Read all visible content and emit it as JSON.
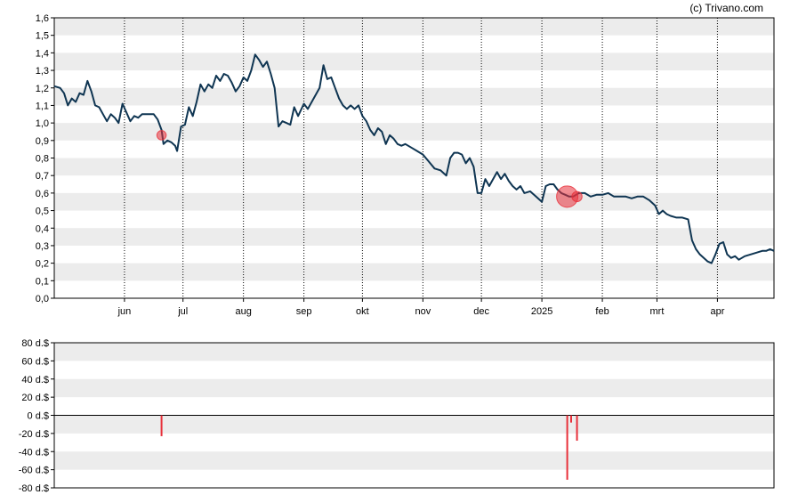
{
  "credit": "(c) Trivano.com",
  "colors": {
    "price_line": "#0f3552",
    "band": "#ececec",
    "transaction_fill": "#e8303a",
    "insider_bar": "#e8303a",
    "axis": "#000000",
    "month_grid": "#000000"
  },
  "chart_data": [
    {
      "type": "line",
      "title": "",
      "xlabel": "",
      "ylabel": "",
      "ylim": [
        0,
        1.6
      ],
      "y_ticks": [
        "0,0",
        "0,1",
        "0,2",
        "0,3",
        "0,4",
        "0,5",
        "0,6",
        "0,7",
        "0,8",
        "0,9",
        "1,0",
        "1,1",
        "1,2",
        "1,3",
        "1,4",
        "1,5",
        "1,6"
      ],
      "x_range": [
        "2024-04-26",
        "2025-04-30"
      ],
      "x_ticks": [
        {
          "label": "jun",
          "date": "2024-06-01"
        },
        {
          "label": "jul",
          "date": "2024-07-01"
        },
        {
          "label": "aug",
          "date": "2024-08-01"
        },
        {
          "label": "sep",
          "date": "2024-09-01"
        },
        {
          "label": "okt",
          "date": "2024-10-01"
        },
        {
          "label": "nov",
          "date": "2024-11-01"
        },
        {
          "label": "dec",
          "date": "2024-12-01"
        },
        {
          "label": "2025",
          "date": "2025-01-01"
        },
        {
          "label": "feb",
          "date": "2025-02-01"
        },
        {
          "label": "mrt",
          "date": "2025-03-01"
        },
        {
          "label": "apr",
          "date": "2025-04-01"
        }
      ],
      "grid": "alternating horizontal bands, dotted vertical month lines",
      "series": [
        {
          "points": [
            [
              "2024-04-26",
              1.21
            ],
            [
              "2024-04-29",
              1.2
            ],
            [
              "2024-05-01",
              1.17
            ],
            [
              "2024-05-03",
              1.1
            ],
            [
              "2024-05-05",
              1.14
            ],
            [
              "2024-05-07",
              1.12
            ],
            [
              "2024-05-09",
              1.17
            ],
            [
              "2024-05-11",
              1.16
            ],
            [
              "2024-05-13",
              1.24
            ],
            [
              "2024-05-15",
              1.18
            ],
            [
              "2024-05-17",
              1.1
            ],
            [
              "2024-05-19",
              1.09
            ],
            [
              "2024-05-21",
              1.05
            ],
            [
              "2024-05-23",
              1.01
            ],
            [
              "2024-05-25",
              1.05
            ],
            [
              "2024-05-27",
              1.03
            ],
            [
              "2024-05-29",
              1.0
            ],
            [
              "2024-05-31",
              1.11
            ],
            [
              "2024-06-02",
              1.06
            ],
            [
              "2024-06-04",
              1.01
            ],
            [
              "2024-06-06",
              1.04
            ],
            [
              "2024-06-08",
              1.03
            ],
            [
              "2024-06-10",
              1.05
            ],
            [
              "2024-06-13",
              1.05
            ],
            [
              "2024-06-16",
              1.05
            ],
            [
              "2024-06-18",
              1.02
            ],
            [
              "2024-06-20",
              0.96
            ],
            [
              "2024-06-21",
              0.88
            ],
            [
              "2024-06-23",
              0.9
            ],
            [
              "2024-06-25",
              0.89
            ],
            [
              "2024-06-27",
              0.87
            ],
            [
              "2024-06-28",
              0.84
            ],
            [
              "2024-06-30",
              0.98
            ],
            [
              "2024-07-02",
              0.99
            ],
            [
              "2024-07-04",
              1.09
            ],
            [
              "2024-07-06",
              1.04
            ],
            [
              "2024-07-08",
              1.12
            ],
            [
              "2024-07-10",
              1.22
            ],
            [
              "2024-07-12",
              1.18
            ],
            [
              "2024-07-14",
              1.22
            ],
            [
              "2024-07-16",
              1.2
            ],
            [
              "2024-07-18",
              1.27
            ],
            [
              "2024-07-20",
              1.24
            ],
            [
              "2024-07-22",
              1.28
            ],
            [
              "2024-07-24",
              1.27
            ],
            [
              "2024-07-26",
              1.23
            ],
            [
              "2024-07-28",
              1.18
            ],
            [
              "2024-07-30",
              1.21
            ],
            [
              "2024-08-01",
              1.26
            ],
            [
              "2024-08-03",
              1.24
            ],
            [
              "2024-08-05",
              1.3
            ],
            [
              "2024-08-07",
              1.39
            ],
            [
              "2024-08-09",
              1.36
            ],
            [
              "2024-08-11",
              1.32
            ],
            [
              "2024-08-13",
              1.35
            ],
            [
              "2024-08-15",
              1.28
            ],
            [
              "2024-08-17",
              1.2
            ],
            [
              "2024-08-19",
              0.98
            ],
            [
              "2024-08-21",
              1.01
            ],
            [
              "2024-08-23",
              1.0
            ],
            [
              "2024-08-25",
              0.99
            ],
            [
              "2024-08-27",
              1.09
            ],
            [
              "2024-08-29",
              1.04
            ],
            [
              "2024-09-01",
              1.11
            ],
            [
              "2024-09-03",
              1.08
            ],
            [
              "2024-09-05",
              1.12
            ],
            [
              "2024-09-07",
              1.16
            ],
            [
              "2024-09-09",
              1.2
            ],
            [
              "2024-09-11",
              1.33
            ],
            [
              "2024-09-13",
              1.25
            ],
            [
              "2024-09-15",
              1.26
            ],
            [
              "2024-09-17",
              1.2
            ],
            [
              "2024-09-19",
              1.14
            ],
            [
              "2024-09-21",
              1.1
            ],
            [
              "2024-09-23",
              1.08
            ],
            [
              "2024-09-25",
              1.1
            ],
            [
              "2024-09-27",
              1.08
            ],
            [
              "2024-09-29",
              1.1
            ],
            [
              "2024-10-01",
              1.04
            ],
            [
              "2024-10-03",
              1.01
            ],
            [
              "2024-10-05",
              0.96
            ],
            [
              "2024-10-07",
              0.93
            ],
            [
              "2024-10-09",
              0.97
            ],
            [
              "2024-10-11",
              0.95
            ],
            [
              "2024-10-13",
              0.88
            ],
            [
              "2024-10-15",
              0.93
            ],
            [
              "2024-10-17",
              0.91
            ],
            [
              "2024-10-19",
              0.88
            ],
            [
              "2024-10-21",
              0.87
            ],
            [
              "2024-10-23",
              0.88
            ],
            [
              "2024-10-26",
              0.86
            ],
            [
              "2024-10-29",
              0.84
            ],
            [
              "2024-11-01",
              0.82
            ],
            [
              "2024-11-04",
              0.78
            ],
            [
              "2024-11-07",
              0.74
            ],
            [
              "2024-11-10",
              0.73
            ],
            [
              "2024-11-13",
              0.7
            ],
            [
              "2024-11-15",
              0.8
            ],
            [
              "2024-11-17",
              0.83
            ],
            [
              "2024-11-19",
              0.83
            ],
            [
              "2024-11-21",
              0.82
            ],
            [
              "2024-11-23",
              0.77
            ],
            [
              "2024-11-25",
              0.8
            ],
            [
              "2024-11-27",
              0.75
            ],
            [
              "2024-11-29",
              0.6
            ],
            [
              "2024-12-01",
              0.6
            ],
            [
              "2024-12-03",
              0.68
            ],
            [
              "2024-12-05",
              0.64
            ],
            [
              "2024-12-07",
              0.68
            ],
            [
              "2024-12-09",
              0.72
            ],
            [
              "2024-12-11",
              0.68
            ],
            [
              "2024-12-13",
              0.71
            ],
            [
              "2024-12-15",
              0.67
            ],
            [
              "2024-12-17",
              0.64
            ],
            [
              "2024-12-19",
              0.62
            ],
            [
              "2024-12-21",
              0.64
            ],
            [
              "2024-12-23",
              0.6
            ],
            [
              "2024-12-26",
              0.61
            ],
            [
              "2024-12-29",
              0.58
            ],
            [
              "2025-01-01",
              0.55
            ],
            [
              "2025-01-03",
              0.64
            ],
            [
              "2025-01-05",
              0.65
            ],
            [
              "2025-01-07",
              0.65
            ],
            [
              "2025-01-09",
              0.62
            ],
            [
              "2025-01-11",
              0.6
            ],
            [
              "2025-01-13",
              0.59
            ],
            [
              "2025-01-15",
              0.58
            ],
            [
              "2025-01-17",
              0.58
            ],
            [
              "2025-01-20",
              0.6
            ],
            [
              "2025-01-23",
              0.6
            ],
            [
              "2025-01-26",
              0.58
            ],
            [
              "2025-01-29",
              0.59
            ],
            [
              "2025-02-01",
              0.59
            ],
            [
              "2025-02-04",
              0.6
            ],
            [
              "2025-02-07",
              0.58
            ],
            [
              "2025-02-10",
              0.58
            ],
            [
              "2025-02-13",
              0.58
            ],
            [
              "2025-02-16",
              0.57
            ],
            [
              "2025-02-19",
              0.58
            ],
            [
              "2025-02-22",
              0.58
            ],
            [
              "2025-02-25",
              0.56
            ],
            [
              "2025-02-28",
              0.53
            ],
            [
              "2025-03-02",
              0.48
            ],
            [
              "2025-03-04",
              0.5
            ],
            [
              "2025-03-06",
              0.48
            ],
            [
              "2025-03-08",
              0.47
            ],
            [
              "2025-03-11",
              0.46
            ],
            [
              "2025-03-14",
              0.46
            ],
            [
              "2025-03-17",
              0.45
            ],
            [
              "2025-03-19",
              0.33
            ],
            [
              "2025-03-21",
              0.28
            ],
            [
              "2025-03-23",
              0.25
            ],
            [
              "2025-03-25",
              0.23
            ],
            [
              "2025-03-27",
              0.21
            ],
            [
              "2025-03-29",
              0.2
            ],
            [
              "2025-03-31",
              0.25
            ],
            [
              "2025-04-02",
              0.31
            ],
            [
              "2025-04-04",
              0.32
            ],
            [
              "2025-04-06",
              0.25
            ],
            [
              "2025-04-08",
              0.23
            ],
            [
              "2025-04-10",
              0.24
            ],
            [
              "2025-04-12",
              0.22
            ],
            [
              "2025-04-15",
              0.24
            ],
            [
              "2025-04-18",
              0.25
            ],
            [
              "2025-04-21",
              0.26
            ],
            [
              "2025-04-24",
              0.27
            ],
            [
              "2025-04-26",
              0.27
            ],
            [
              "2025-04-28",
              0.28
            ],
            [
              "2025-04-30",
              0.27
            ]
          ]
        }
      ],
      "markers": [
        {
          "date": "2024-06-20",
          "price": 0.93,
          "relative_size": 0.25
        },
        {
          "date": "2025-01-14",
          "price": 0.58,
          "relative_size": 1.0
        },
        {
          "date": "2025-01-19",
          "price": 0.58,
          "relative_size": 0.3
        }
      ]
    },
    {
      "type": "bar",
      "title": "",
      "xlabel": "",
      "ylabel": "",
      "ylim": [
        -80,
        80
      ],
      "y_ticks": [
        "80 d.$",
        "60 d.$",
        "40 d.$",
        "20 d.$",
        "0 d.$",
        "-20 d.$",
        "-40 d.$",
        "-60 d.$",
        "-80 d.$"
      ],
      "x_range": [
        "2024-04-26",
        "2025-04-30"
      ],
      "grid": "alternating horizontal bands, zero line",
      "bars": [
        {
          "date": "2024-06-20",
          "value": -23
        },
        {
          "date": "2025-01-14",
          "value": -71
        },
        {
          "date": "2025-01-16",
          "value": -8
        },
        {
          "date": "2025-01-19",
          "value": -28
        }
      ]
    }
  ]
}
